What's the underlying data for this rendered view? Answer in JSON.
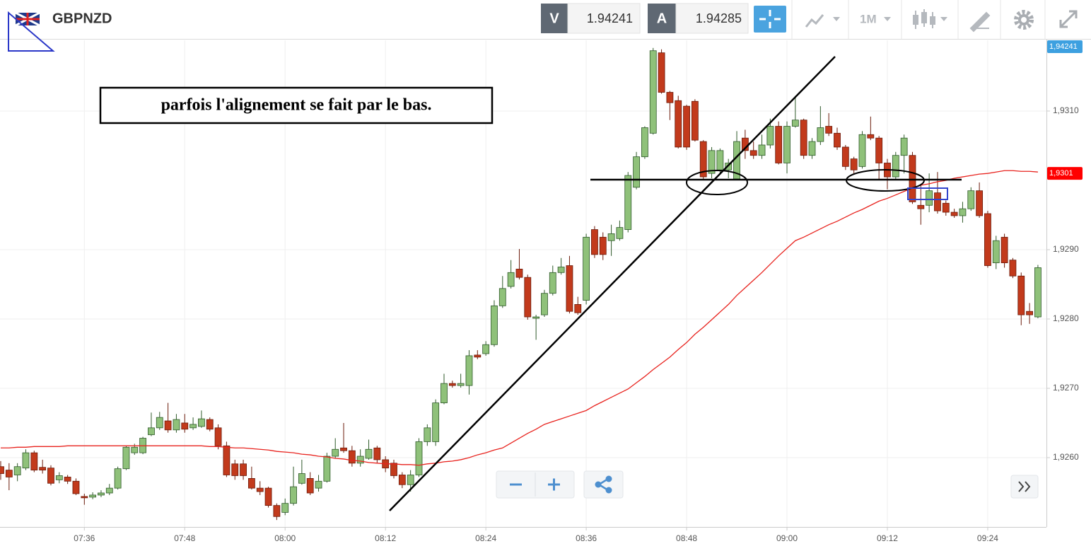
{
  "header": {
    "symbol": "GBPNZD",
    "bid_label": "V",
    "bid": "1.94241",
    "ask_label": "A",
    "ask": "1.94285",
    "timeframe": "1M"
  },
  "chart_data": {
    "type": "candlestick",
    "annotation": "parfois l'alignement se fait par le bas.",
    "ylim": [
      1.925,
      1.93202
    ],
    "yticks": [
      {
        "value": 1.926,
        "label": "1,9260"
      },
      {
        "value": 1.927,
        "label": "1,9270"
      },
      {
        "value": 1.928,
        "label": "1,9280"
      },
      {
        "value": 1.929,
        "label": "1,9290"
      },
      {
        "value": 1.931,
        "label": "1,9310"
      }
    ],
    "grid": true,
    "up_color": "#8fc17a",
    "down_color": "#c23a1c",
    "categories": [
      null,
      null,
      null,
      null,
      null,
      null,
      null,
      null,
      null,
      null,
      "07:36",
      null,
      null,
      null,
      null,
      null,
      null,
      null,
      null,
      null,
      null,
      null,
      "07:48",
      null,
      null,
      null,
      null,
      null,
      null,
      null,
      null,
      null,
      null,
      null,
      "08:00",
      null,
      null,
      null,
      null,
      null,
      null,
      null,
      null,
      null,
      null,
      null,
      "08:12",
      null,
      null,
      null,
      null,
      null,
      null,
      null,
      null,
      null,
      null,
      null,
      "08:24",
      null,
      null,
      null,
      null,
      null,
      null,
      null,
      null,
      null,
      null,
      null,
      "08:36",
      null,
      null,
      null,
      null,
      null,
      null,
      null,
      null,
      null,
      null,
      null,
      "08:48",
      null,
      null,
      null,
      null,
      null,
      null,
      null,
      null,
      null,
      null,
      null,
      "09:00",
      null,
      null,
      null,
      null,
      null,
      null,
      null,
      null,
      null,
      null,
      null,
      "09:12",
      null,
      null,
      null,
      null,
      null,
      null,
      null,
      null,
      null,
      null,
      null,
      "09:24",
      null,
      null,
      null,
      null,
      null,
      null
    ],
    "candles": [
      [
        1.92587,
        1.92595,
        1.92568,
        1.92577
      ],
      [
        1.92582,
        1.92592,
        1.92553,
        1.92572
      ],
      [
        1.92575,
        1.92592,
        1.92566,
        1.92587
      ],
      [
        1.92585,
        1.92612,
        1.92582,
        1.92607
      ],
      [
        1.92607,
        1.9261,
        1.92579,
        1.92582
      ],
      [
        1.92586,
        1.92597,
        1.92577,
        1.92582
      ],
      [
        1.92585,
        1.92589,
        1.9256,
        1.92563
      ],
      [
        1.92568,
        1.92579,
        1.92563,
        1.92574
      ],
      [
        1.92572,
        1.92575,
        1.92562,
        1.92566
      ],
      [
        1.92566,
        1.9257,
        1.92546,
        1.92548
      ],
      [
        1.92544,
        1.92548,
        1.92532,
        1.92542
      ],
      [
        1.92543,
        1.9255,
        1.9254,
        1.92546
      ],
      [
        1.92546,
        1.92553,
        1.92543,
        1.92549
      ],
      [
        1.92549,
        1.92562,
        1.92546,
        1.92556
      ],
      [
        1.92556,
        1.92587,
        1.92554,
        1.92584
      ],
      [
        1.92584,
        1.92617,
        1.92582,
        1.92615
      ],
      [
        1.92607,
        1.9262,
        1.92604,
        1.92615
      ],
      [
        1.92607,
        1.9263,
        1.92605,
        1.92628
      ],
      [
        1.92633,
        1.92665,
        1.92631,
        1.92643
      ],
      [
        1.92643,
        1.92666,
        1.9264,
        1.92658
      ],
      [
        1.92653,
        1.92679,
        1.92636,
        1.9264
      ],
      [
        1.9264,
        1.92663,
        1.92636,
        1.92655
      ],
      [
        1.9265,
        1.92663,
        1.92636,
        1.92641
      ],
      [
        1.92643,
        1.92658,
        1.9264,
        1.92648
      ],
      [
        1.92645,
        1.92668,
        1.92643,
        1.92656
      ],
      [
        1.92655,
        1.92658,
        1.92638,
        1.92641
      ],
      [
        1.92643,
        1.92648,
        1.92612,
        1.92617
      ],
      [
        1.92617,
        1.92623,
        1.92572,
        1.92575
      ],
      [
        1.92591,
        1.92597,
        1.92568,
        1.92574
      ],
      [
        1.92591,
        1.92597,
        1.92568,
        1.92574
      ],
      [
        1.9257,
        1.92587,
        1.92554,
        1.92556
      ],
      [
        1.92556,
        1.92566,
        1.92546,
        1.92551
      ],
      [
        1.92556,
        1.92558,
        1.92528,
        1.92531
      ],
      [
        1.92531,
        1.92534,
        1.9251,
        1.92515
      ],
      [
        1.92521,
        1.92541,
        1.92517,
        1.92534
      ],
      [
        1.92534,
        1.92587,
        1.92531,
        1.92558
      ],
      [
        1.92563,
        1.92597,
        1.92561,
        1.92577
      ],
      [
        1.9257,
        1.92579,
        1.92546,
        1.92549
      ],
      [
        1.92556,
        1.92575,
        1.92551,
        1.92566
      ],
      [
        1.92566,
        1.92607,
        1.92564,
        1.92602
      ],
      [
        1.92602,
        1.92628,
        1.92599,
        1.92612
      ],
      [
        1.92614,
        1.9265,
        1.92607,
        1.9261
      ],
      [
        1.9261,
        1.92617,
        1.92587,
        1.92592
      ],
      [
        1.92592,
        1.92612,
        1.92587,
        1.92602
      ],
      [
        1.92599,
        1.92626,
        1.92597,
        1.92612
      ],
      [
        1.92614,
        1.92617,
        1.92592,
        1.92597
      ],
      [
        1.92597,
        1.92602,
        1.92579,
        1.92585
      ],
      [
        1.92592,
        1.92597,
        1.9257,
        1.92574
      ],
      [
        1.92575,
        1.92579,
        1.92556,
        1.92561
      ],
      [
        1.92561,
        1.92582,
        1.92551,
        1.92575
      ],
      [
        1.92575,
        1.92628,
        1.92572,
        1.92623
      ],
      [
        1.92623,
        1.92648,
        1.92617,
        1.92643
      ],
      [
        1.92623,
        1.92684,
        1.92617,
        1.92679
      ],
      [
        1.92679,
        1.92721,
        1.92677,
        1.92707
      ],
      [
        1.92707,
        1.92711,
        1.92701,
        1.92704
      ],
      [
        1.92704,
        1.92721,
        1.92701,
        1.92707
      ],
      [
        1.92704,
        1.92755,
        1.92691,
        1.92747
      ],
      [
        1.92748,
        1.92755,
        1.92742,
        1.92745
      ],
      [
        1.9275,
        1.92768,
        1.92747,
        1.92763
      ],
      [
        1.92763,
        1.92827,
        1.9276,
        1.92819
      ],
      [
        1.92819,
        1.92862,
        1.92816,
        1.92844
      ],
      [
        1.92847,
        1.92885,
        1.92844,
        1.92867
      ],
      [
        1.92872,
        1.92901,
        1.92857,
        1.9286
      ],
      [
        1.9286,
        1.92864,
        1.92799,
        1.92803
      ],
      [
        1.92801,
        1.92806,
        1.9277,
        1.92803
      ],
      [
        1.92806,
        1.92842,
        1.92803,
        1.92837
      ],
      [
        1.92837,
        1.92877,
        1.92834,
        1.92867
      ],
      [
        1.92867,
        1.92888,
        1.92864,
        1.92875
      ],
      [
        1.92877,
        1.92891,
        1.92808,
        1.92811
      ],
      [
        1.92821,
        1.92832,
        1.92806,
        1.92809
      ],
      [
        1.92827,
        1.92923,
        1.92821,
        1.92918
      ],
      [
        1.92929,
        1.92934,
        1.92888,
        1.92893
      ],
      [
        1.92918,
        1.92925,
        1.92885,
        1.92893
      ],
      [
        1.92913,
        1.92936,
        1.92891,
        1.92923
      ],
      [
        1.92916,
        1.92942,
        1.92913,
        1.92932
      ],
      [
        1.92929,
        1.93012,
        1.92925,
        1.93007
      ],
      [
        1.9299,
        1.93041,
        1.92987,
        1.93034
      ],
      [
        1.93034,
        1.93078,
        1.93031,
        1.93076
      ],
      [
        1.93068,
        1.93191,
        1.93066,
        1.93187
      ],
      [
        1.93184,
        1.93189,
        1.93125,
        1.93127
      ],
      [
        1.93127,
        1.93129,
        1.93087,
        1.93112
      ],
      [
        1.93115,
        1.93122,
        1.93046,
        1.93048
      ],
      [
        1.93107,
        1.93109,
        1.93044,
        1.93048
      ],
      [
        1.93114,
        1.93117,
        1.93056,
        1.93058
      ],
      [
        1.93056,
        1.93058,
        1.93,
        1.93005
      ],
      [
        1.9301,
        1.93048,
        1.93003,
        1.93043
      ],
      [
        1.93015,
        1.93046,
        1.9301,
        1.93043
      ],
      [
        1.93015,
        1.93031,
        1.93003,
        1.93025
      ],
      [
        1.93002,
        1.93071,
        1.93,
        1.93056
      ],
      [
        1.93061,
        1.93073,
        1.93031,
        1.93043
      ],
      [
        1.93043,
        1.93056,
        1.93031,
        1.93036
      ],
      [
        1.93036,
        1.93066,
        1.93031,
        1.93051
      ],
      [
        1.93051,
        1.93089,
        1.93046,
        1.93078
      ],
      [
        1.93078,
        1.93085,
        1.93023,
        1.93025
      ],
      [
        1.93025,
        1.93085,
        1.9301,
        1.93078
      ],
      [
        1.93078,
        1.93122,
        1.93076,
        1.93087
      ],
      [
        1.93087,
        1.93089,
        1.93031,
        1.93036
      ],
      [
        1.93036,
        1.93061,
        1.93031,
        1.93056
      ],
      [
        1.93056,
        1.93107,
        1.93051,
        1.93076
      ],
      [
        1.93078,
        1.93097,
        1.93064,
        1.93068
      ],
      [
        1.93068,
        1.93076,
        1.93044,
        1.93048
      ],
      [
        1.93048,
        1.93051,
        1.93015,
        1.9302
      ],
      [
        1.93031,
        1.93034,
        1.9301,
        1.93015
      ],
      [
        1.9302,
        1.93071,
        1.93017,
        1.93066
      ],
      [
        1.93066,
        1.93092,
        1.93058,
        1.93061
      ],
      [
        1.93061,
        1.93064,
        1.93,
        1.93025
      ],
      [
        1.93025,
        1.93031,
        1.92987,
        1.93005
      ],
      [
        1.93005,
        1.93041,
        1.93,
        1.93036
      ],
      [
        1.93036,
        1.93066,
        1.9301,
        1.93061
      ],
      [
        1.93036,
        1.93041,
        1.92966,
        1.92969
      ],
      [
        1.92964,
        1.92995,
        1.92936,
        1.92959
      ],
      [
        1.92964,
        1.9301,
        1.92954,
        1.92985
      ],
      [
        1.92982,
        1.93012,
        1.92952,
        1.92956
      ],
      [
        1.92967,
        1.92971,
        1.92949,
        1.92954
      ],
      [
        1.92954,
        1.92959,
        1.92946,
        1.92949
      ],
      [
        1.92949,
        1.92969,
        1.92939,
        1.92959
      ],
      [
        1.92959,
        1.9299,
        1.92956,
        1.92985
      ],
      [
        1.92985,
        1.92997,
        1.92946,
        1.92949
      ],
      [
        1.92952,
        1.92956,
        1.92874,
        1.92877
      ],
      [
        1.92881,
        1.9292,
        1.92872,
        1.92913
      ],
      [
        1.92918,
        1.92923,
        1.92874,
        1.92881
      ],
      [
        1.92885,
        1.92888,
        1.92859,
        1.92862
      ],
      [
        1.92862,
        1.92867,
        1.92791,
        1.92806
      ],
      [
        1.92811,
        1.92823,
        1.92793,
        1.92806
      ],
      [
        1.92803,
        1.92878,
        1.92801,
        1.92874
      ]
    ],
    "moving_average": {
      "color": "#e8231e",
      "values": [
        1.92614,
        1.92614,
        1.92615,
        1.92615,
        1.92616,
        1.92616,
        1.92616,
        1.92616,
        1.92617,
        1.92617,
        1.92617,
        1.92617,
        1.92617,
        1.92617,
        1.92617,
        1.92617,
        1.92617,
        1.92617,
        1.92617,
        1.92617,
        1.92617,
        1.92617,
        1.92617,
        1.92617,
        1.92617,
        1.92616,
        1.92616,
        1.92615,
        1.92614,
        1.92614,
        1.92613,
        1.92612,
        1.92611,
        1.92609,
        1.92608,
        1.92607,
        1.92605,
        1.92604,
        1.92602,
        1.92601,
        1.92599,
        1.92598,
        1.92596,
        1.92595,
        1.92593,
        1.92592,
        1.92591,
        1.92591,
        1.9259,
        1.9259,
        1.92589,
        1.92591,
        1.92592,
        1.92594,
        1.92595,
        1.92597,
        1.926,
        1.92604,
        1.92607,
        1.92611,
        1.92614,
        1.92621,
        1.92628,
        1.92635,
        1.92641,
        1.92648,
        1.92652,
        1.92656,
        1.9266,
        1.92664,
        1.92668,
        1.92675,
        1.92681,
        1.92687,
        1.92693,
        1.92699,
        1.92708,
        1.92717,
        1.92727,
        1.92736,
        1.92745,
        1.92756,
        1.92766,
        1.92778,
        1.92788,
        1.92799,
        1.9281,
        1.92821,
        1.92834,
        1.92845,
        1.92856,
        1.92867,
        1.92879,
        1.92891,
        1.92902,
        1.92913,
        1.92918,
        1.92924,
        1.9293,
        1.92936,
        1.92941,
        1.92947,
        1.92953,
        1.92958,
        1.92964,
        1.9297,
        1.92974,
        1.92979,
        1.92984,
        1.92989,
        1.92993,
        1.92995,
        1.92998,
        1.93,
        1.93003,
        1.93005,
        1.93007,
        1.93009,
        1.9301,
        1.93012,
        1.93014,
        1.93014,
        1.93013,
        1.93013,
        1.93012
      ]
    },
    "price_tags": [
      {
        "value": 1.94241,
        "label": "1,94241",
        "color": "#3da0e0"
      },
      {
        "value": 1.9301,
        "label": "1,9301",
        "color": "#ff0000"
      }
    ]
  }
}
